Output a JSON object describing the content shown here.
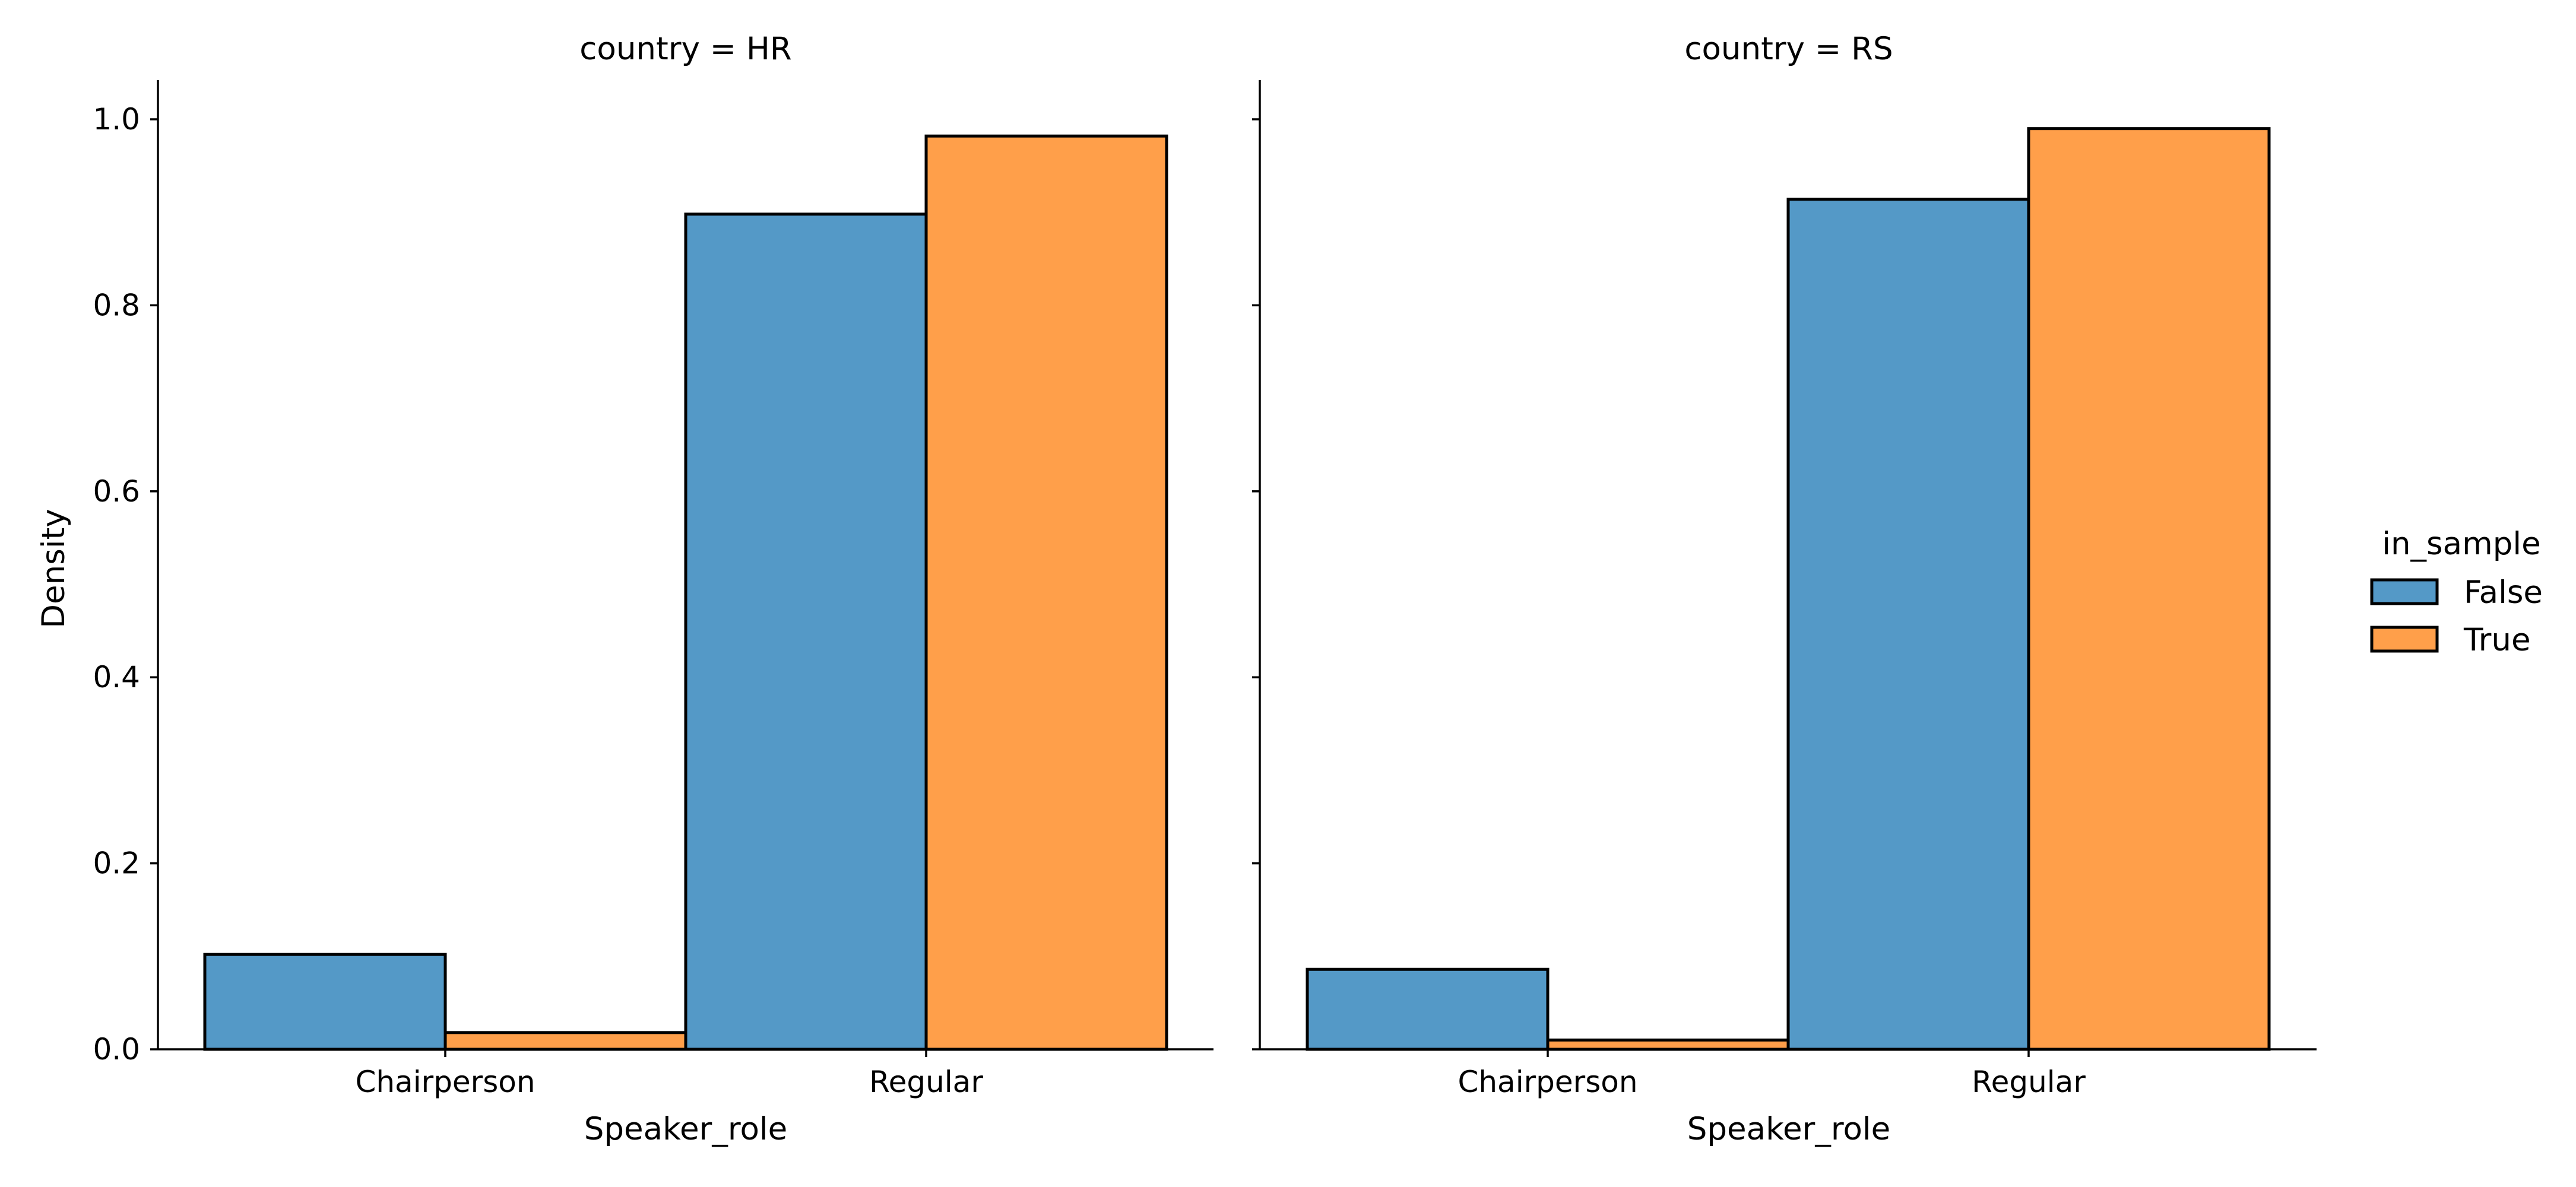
{
  "chart_data": [
    {
      "type": "bar",
      "title": "country = HR",
      "xlabel": "Speaker_role",
      "ylabel": "Density",
      "categories": [
        "Chairperson",
        "Regular"
      ],
      "ylim": [
        0,
        1.04
      ],
      "yticks": [
        "0.0",
        "0.2",
        "0.4",
        "0.6",
        "0.8",
        "1.0"
      ],
      "series": [
        {
          "name": "False",
          "values": [
            0.102,
            0.898
          ]
        },
        {
          "name": "True",
          "values": [
            0.018,
            0.982
          ]
        }
      ]
    },
    {
      "type": "bar",
      "title": "country = RS",
      "xlabel": "Speaker_role",
      "ylabel": "",
      "categories": [
        "Chairperson",
        "Regular"
      ],
      "ylim": [
        0,
        1.04
      ],
      "yticks": [
        "0.0",
        "0.2",
        "0.4",
        "0.6",
        "0.8",
        "1.0"
      ],
      "series": [
        {
          "name": "False",
          "values": [
            0.086,
            0.914
          ]
        },
        {
          "name": "True",
          "values": [
            0.01,
            0.99
          ]
        }
      ]
    }
  ],
  "legend": {
    "title": "in_sample",
    "placement": "right",
    "entries": [
      {
        "label": "False",
        "color": "#5499c7"
      },
      {
        "label": "True",
        "color": "#ff9f4a"
      }
    ]
  },
  "colors": {
    "false_bar": "#5499c7",
    "true_bar": "#ff9f4a",
    "edge": "#000000"
  },
  "grid": false
}
